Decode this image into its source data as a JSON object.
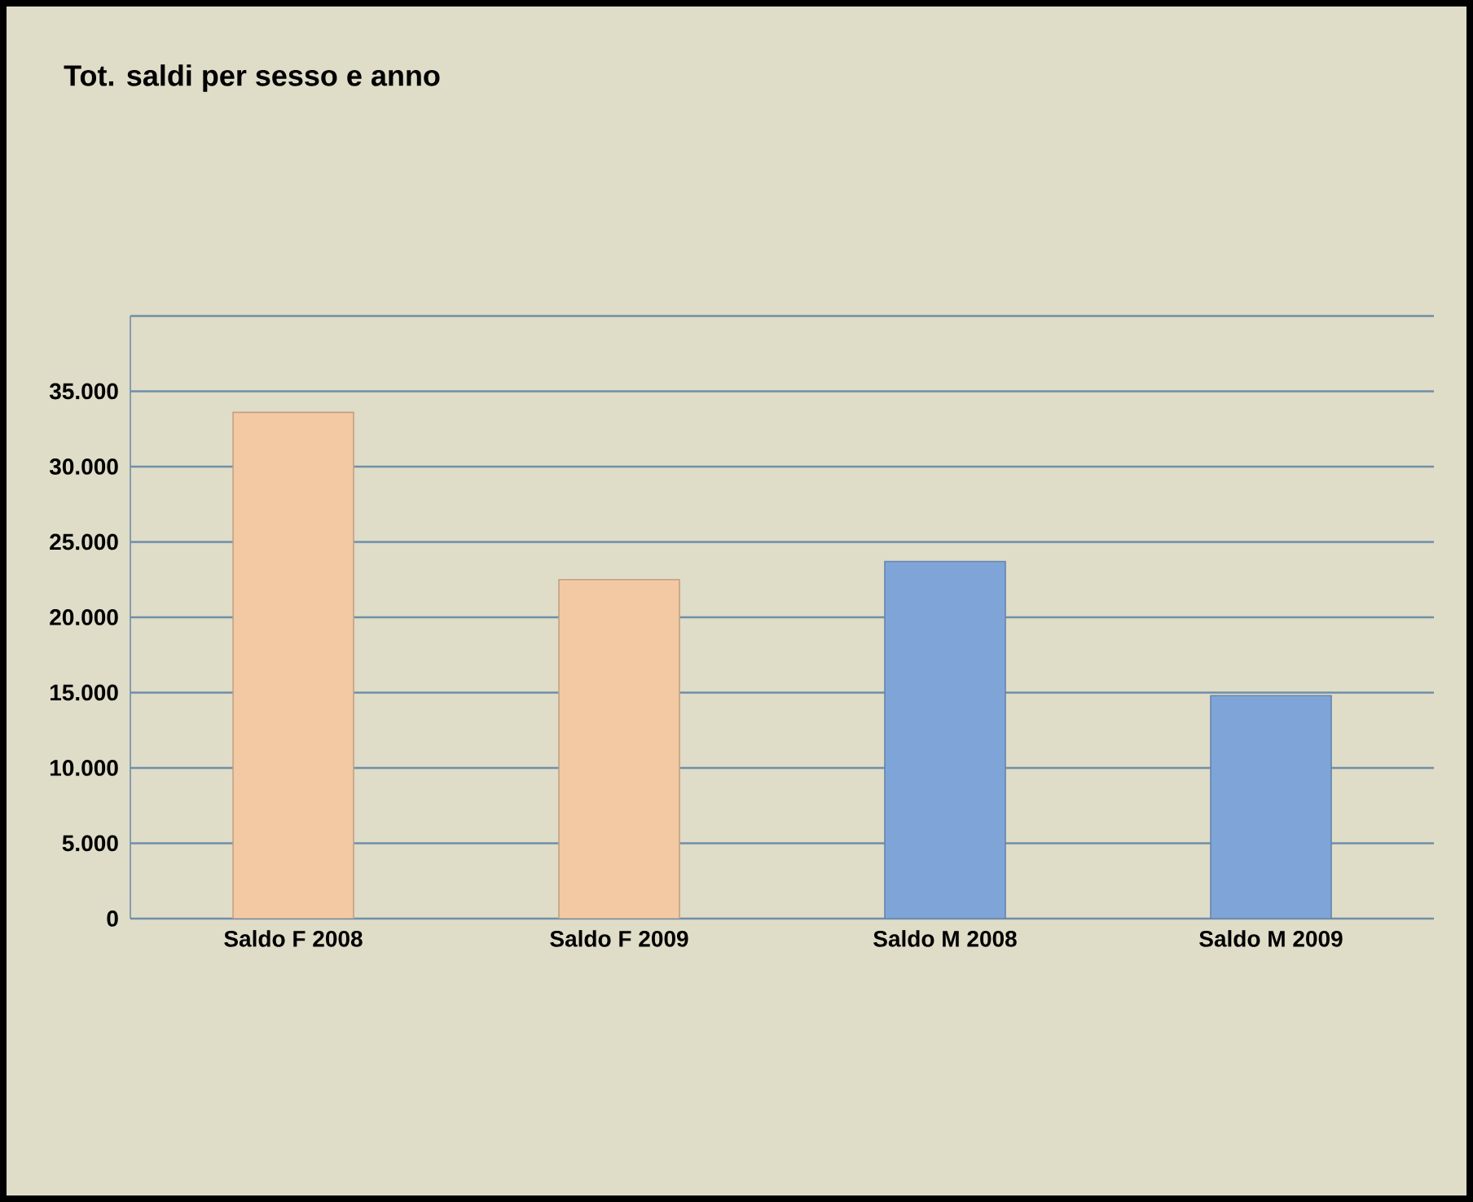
{
  "chart_data": {
    "type": "bar",
    "title": "Tot. saldi per sesso e anno",
    "categories": [
      "Saldo F 2008",
      "Saldo F 2009",
      "Saldo M 2008",
      "Saldo M 2009"
    ],
    "values": [
      33600,
      22500,
      23700,
      14800
    ],
    "colors": [
      "#f3c9a4",
      "#f3c9a4",
      "#7fa5d8",
      "#7fa5d8"
    ],
    "ylim": [
      0,
      40000
    ],
    "yticks": [
      0,
      {
        "value": 5000,
        "label": "5.000"
      },
      {
        "value": 10000,
        "label": "10.000"
      },
      {
        "value": 15000,
        "label": "15.000"
      },
      {
        "value": 20000,
        "label": "20.000"
      },
      {
        "value": 25000,
        "label": "25.000"
      },
      {
        "value": 30000,
        "label": "30.000"
      },
      {
        "value": 35000,
        "label": "35.000"
      },
      {
        "value": 40000,
        "label": null
      }
    ],
    "grid": "y"
  }
}
